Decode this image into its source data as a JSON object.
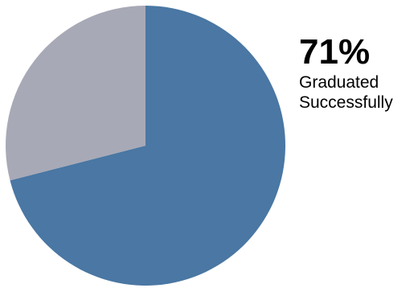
{
  "chart_data": {
    "type": "pie",
    "title": "",
    "slices": [
      {
        "label": "Graduated Successfully",
        "value": 71,
        "color": "#4a77a3"
      },
      {
        "label": "",
        "value": 29,
        "color": "#a8a9b6"
      }
    ],
    "callout": {
      "value_text": "71%",
      "label_line1": "Graduated",
      "label_line2": "Successfully"
    }
  }
}
